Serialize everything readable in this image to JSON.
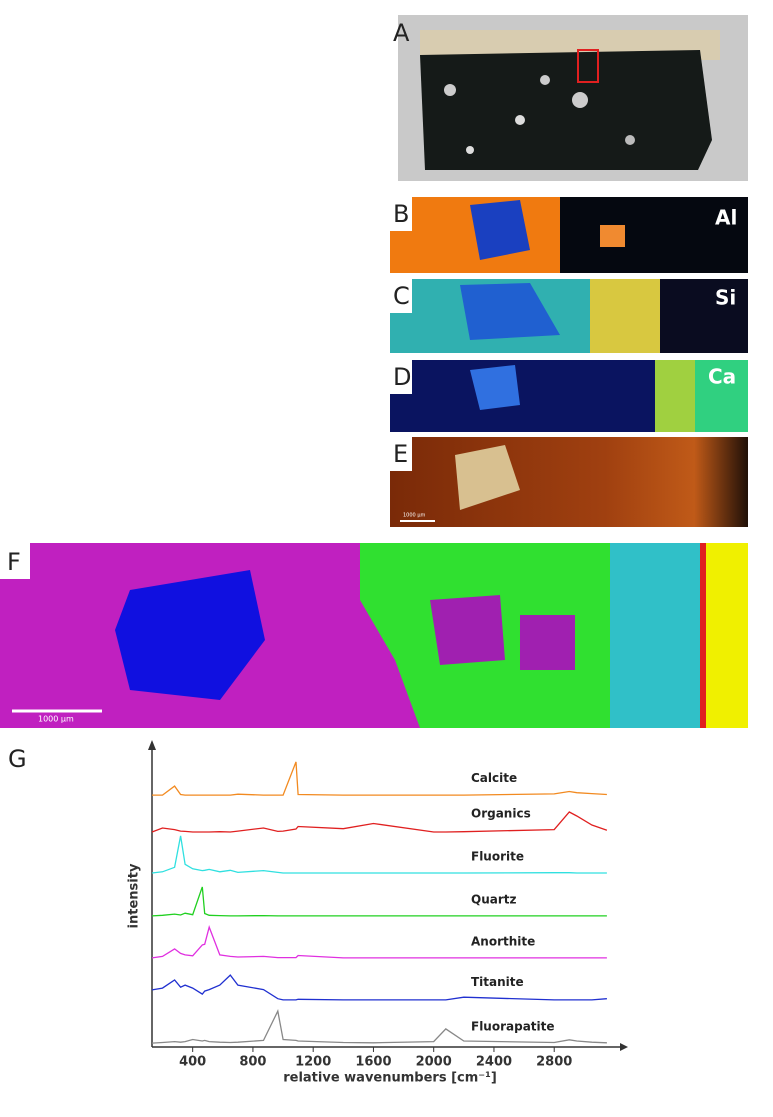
{
  "panels": [
    {
      "label": "A"
    },
    {
      "label": "B",
      "element": "Al"
    },
    {
      "label": "C",
      "element": "Si"
    },
    {
      "label": "D",
      "element": "Ca"
    },
    {
      "label": "E",
      "scale": "1000 µm"
    },
    {
      "label": "F",
      "scale": "1000 µm"
    },
    {
      "label": "G"
    }
  ],
  "chart_data": {
    "type": "line",
    "xlabel": "relative wavenumbers [cm⁻¹]",
    "ylabel": "intensity",
    "x": [
      130,
      200,
      280,
      320,
      350,
      400,
      464,
      480,
      510,
      580,
      650,
      700,
      870,
      965,
      1000,
      1086,
      1100,
      1400,
      1600,
      2000,
      2080,
      2200,
      2800,
      2900,
      2950,
      3050,
      3150
    ],
    "xlim": [
      130,
      3250
    ],
    "ylim": [
      0,
      100
    ],
    "xticks": [
      400,
      800,
      1200,
      1600,
      2000,
      2400,
      2800
    ],
    "series": [
      {
        "name": "Calcite",
        "color": "#f28a20",
        "values": [
          83.4,
          83.4,
          86.4,
          83.6,
          83.4,
          83.4,
          83.4,
          83.4,
          83.4,
          83.4,
          83.4,
          83.7,
          83.4,
          83.4,
          83.4,
          94.4,
          83.6,
          83.4,
          83.4,
          83.4,
          83.4,
          83.4,
          83.8,
          84.6,
          84.2,
          83.9,
          83.6
        ]
      },
      {
        "name": "Organics",
        "color": "#e02020",
        "values": [
          71.2,
          72.5,
          72.0,
          71.5,
          71.4,
          71.2,
          71.2,
          71.2,
          71.2,
          71.3,
          71.2,
          71.5,
          72.5,
          71.4,
          71.5,
          72.2,
          73.0,
          72.3,
          74.0,
          71.2,
          71.2,
          71.3,
          72.0,
          77.8,
          76.5,
          73.5,
          71.8
        ]
      },
      {
        "name": "Fluorite",
        "color": "#30e0e0",
        "values": [
          57.6,
          58.0,
          59.5,
          69.9,
          60.5,
          59.0,
          58.4,
          58.5,
          58.8,
          58.0,
          58.5,
          57.8,
          58.4,
          57.8,
          57.6,
          57.6,
          57.6,
          57.6,
          57.6,
          57.6,
          57.6,
          57.6,
          57.7,
          57.7,
          57.6,
          57.6,
          57.6
        ]
      },
      {
        "name": "Quartz",
        "color": "#20d020",
        "values": [
          43.4,
          43.6,
          44.0,
          43.7,
          44.3,
          43.8,
          53.0,
          44.2,
          43.6,
          43.5,
          43.4,
          43.4,
          43.5,
          43.4,
          43.4,
          43.4,
          43.4,
          43.4,
          43.4,
          43.4,
          43.4,
          43.4,
          43.4,
          43.4,
          43.4,
          43.4,
          43.4
        ]
      },
      {
        "name": "Anorthite",
        "color": "#e030e0",
        "values": [
          29.5,
          30.0,
          32.5,
          31.0,
          30.5,
          30.2,
          33.8,
          34.0,
          39.7,
          30.5,
          30.0,
          29.8,
          30.0,
          29.6,
          29.6,
          29.6,
          30.3,
          29.5,
          29.5,
          29.5,
          29.5,
          29.5,
          29.5,
          29.5,
          29.5,
          29.5,
          29.5
        ]
      },
      {
        "name": "Titanite",
        "color": "#2030d0",
        "values": [
          18.9,
          19.5,
          22.2,
          19.8,
          20.5,
          19.5,
          17.5,
          18.5,
          19.0,
          20.5,
          23.8,
          20.5,
          19.0,
          16.0,
          15.6,
          15.6,
          15.8,
          15.6,
          15.6,
          15.6,
          15.6,
          16.5,
          15.6,
          15.6,
          15.6,
          15.6,
          16.0
        ]
      },
      {
        "name": "Fluorapatite",
        "color": "#888888",
        "values": [
          1.3,
          1.5,
          1.8,
          1.6,
          1.8,
          2.5,
          2.0,
          2.2,
          1.8,
          1.6,
          1.5,
          1.6,
          2.2,
          11.9,
          2.5,
          2.2,
          2.0,
          1.5,
          1.4,
          1.8,
          6.0,
          2.0,
          1.5,
          2.4,
          2.0,
          1.6,
          1.4
        ]
      }
    ]
  }
}
